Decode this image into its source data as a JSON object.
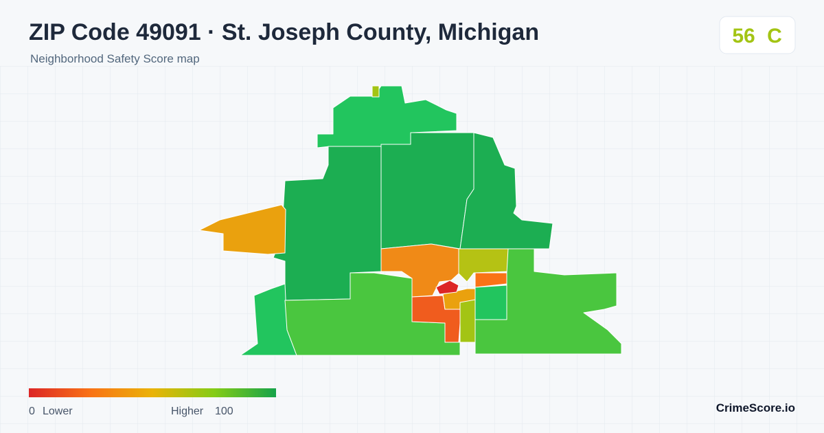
{
  "header": {
    "title": "ZIP Code 49091 · St. Joseph County, Michigan",
    "subtitle": "Neighborhood Safety Score map"
  },
  "badge": {
    "score": 56,
    "grade": "C"
  },
  "legend": {
    "min": 0,
    "min_label": "Lower",
    "max_label": "Higher",
    "max": 100
  },
  "brand": "CrimeScore.io"
}
